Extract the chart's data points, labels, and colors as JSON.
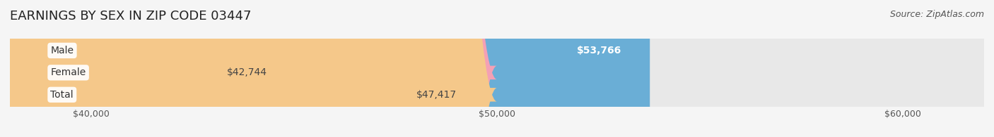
{
  "title": "EARNINGS BY SEX IN ZIP CODE 03447",
  "source": "Source: ZipAtlas.com",
  "categories": [
    "Male",
    "Female",
    "Total"
  ],
  "values": [
    53766,
    42744,
    47417
  ],
  "bar_colors": [
    "#6aaed6",
    "#f4a0b5",
    "#f5c88a"
  ],
  "label_colors": [
    "#ffffff",
    "#555555",
    "#555555"
  ],
  "xmin": 38000,
  "xmax": 62000,
  "xticks": [
    40000,
    50000,
    60000
  ],
  "xtick_labels": [
    "$40,000",
    "$50,000",
    "$60,000"
  ],
  "bar_height": 0.62,
  "background_color": "#f5f5f5",
  "bar_bg_color": "#e8e8e8",
  "title_fontsize": 13,
  "label_fontsize": 10,
  "value_fontsize": 10,
  "source_fontsize": 9,
  "tick_fontsize": 9
}
